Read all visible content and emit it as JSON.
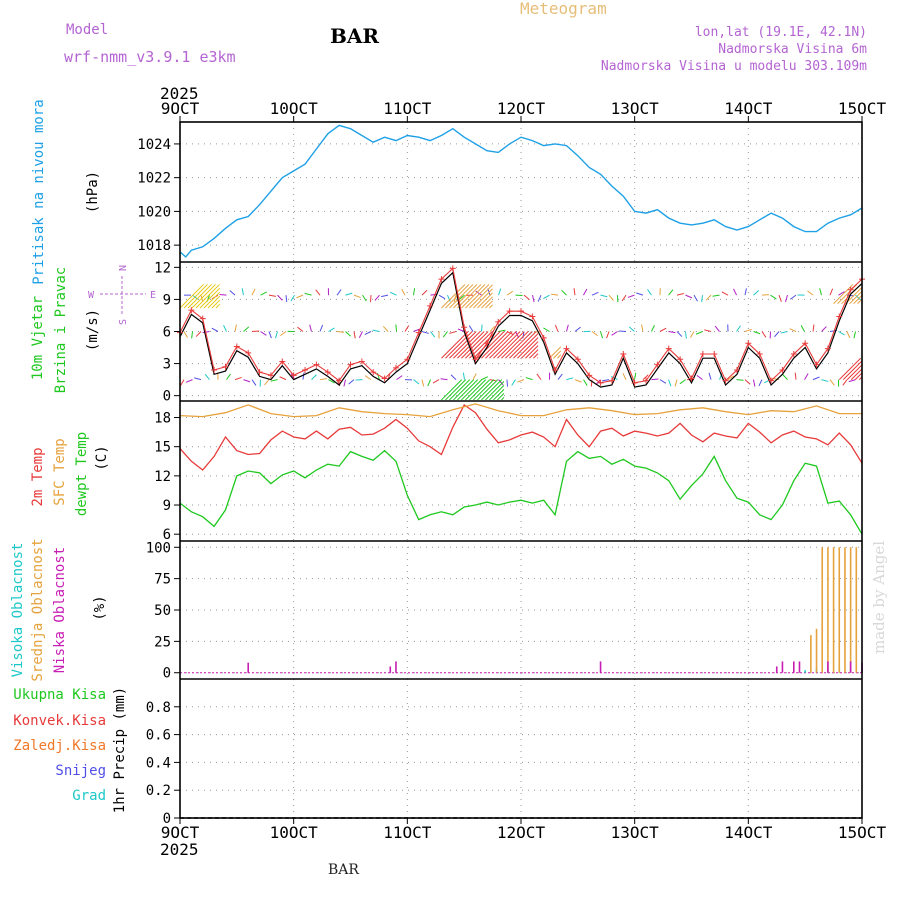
{
  "header": {
    "model_label": "Model",
    "model_name": "wrf-nmm_v3.9.1 e3km",
    "station": "BAR",
    "product": "Meteogram",
    "coords": "lon,lat (19.1E, 42.1N)",
    "elevation": "Nadmorska Visina 6m",
    "model_elevation": "Nadmorska Visina u modelu 303.109m"
  },
  "footer": {
    "station": "BAR",
    "watermark": "made by Angel"
  },
  "colors": {
    "pressure": "#1ea0e6",
    "temp2m": "#e83a3a",
    "sfc": "#e6a23c",
    "dewpt": "#1ec81e",
    "high_cloud": "#1ec8c8",
    "mid_cloud": "#e6a23c",
    "low_cloud": "#c81eb4",
    "model_text": "#b464d2",
    "meteogram_text": "#e6be78"
  },
  "chart_data": [
    {
      "type": "line",
      "panel": "pressure",
      "title": "Pritisak na nivou mora",
      "ylabel": "(hPa)",
      "ylim": [
        1017,
        1025.3
      ],
      "yticks": [
        1018,
        1020,
        1022,
        1024
      ],
      "x_unit": "day of October 2025",
      "x_ticks": [
        "9OCT",
        "10OCT",
        "11OCT",
        "12OCT",
        "13OCT",
        "14OCT",
        "15OCT"
      ],
      "year": "2025",
      "series": [
        {
          "name": "Pritisak na nivou mora",
          "x": [
            9.0,
            9.05,
            9.1,
            9.2,
            9.3,
            9.4,
            9.5,
            9.6,
            9.7,
            9.8,
            9.9,
            10.0,
            10.1,
            10.2,
            10.3,
            10.4,
            10.5,
            10.6,
            10.7,
            10.8,
            10.9,
            11.0,
            11.1,
            11.2,
            11.3,
            11.4,
            11.5,
            11.6,
            11.7,
            11.8,
            11.9,
            12.0,
            12.1,
            12.2,
            12.3,
            12.4,
            12.5,
            12.6,
            12.7,
            12.8,
            12.9,
            13.0,
            13.1,
            13.2,
            13.3,
            13.4,
            13.5,
            13.6,
            13.7,
            13.8,
            13.9,
            14.0,
            14.1,
            14.2,
            14.3,
            14.4,
            14.5,
            14.6,
            14.7,
            14.8,
            14.9,
            15.0
          ],
          "values": [
            1017.6,
            1017.3,
            1017.7,
            1017.9,
            1018.4,
            1019.0,
            1019.5,
            1019.7,
            1020.4,
            1021.2,
            1022.0,
            1022.4,
            1022.8,
            1023.7,
            1024.6,
            1025.1,
            1024.9,
            1024.5,
            1024.1,
            1024.4,
            1024.2,
            1024.5,
            1024.4,
            1024.2,
            1024.5,
            1024.9,
            1024.4,
            1024.0,
            1023.6,
            1023.5,
            1024.0,
            1024.4,
            1024.2,
            1023.9,
            1024.0,
            1023.9,
            1023.3,
            1022.6,
            1022.2,
            1021.5,
            1020.9,
            1020.0,
            1019.9,
            1020.1,
            1019.6,
            1019.3,
            1019.2,
            1019.3,
            1019.5,
            1019.1,
            1018.9,
            1019.1,
            1019.5,
            1019.9,
            1019.6,
            1019.1,
            1018.8,
            1018.8,
            1019.3,
            1019.6,
            1019.8,
            1020.2
          ]
        }
      ]
    },
    {
      "type": "line",
      "panel": "wind",
      "title": "10m Vjetar Brzina i Pravac",
      "ylabel": "(m/s)",
      "ylim": [
        -0.5,
        12.5
      ],
      "yticks": [
        0,
        3,
        6,
        9,
        12
      ],
      "direction_legend": {
        "north": "N",
        "south": "S",
        "west": "W",
        "east": "E"
      },
      "series": [
        {
          "name": "brzina",
          "x": [
            9.0,
            9.1,
            9.2,
            9.3,
            9.4,
            9.5,
            9.6,
            9.7,
            9.8,
            9.9,
            10.0,
            10.1,
            10.2,
            10.3,
            10.4,
            10.5,
            10.6,
            10.7,
            10.8,
            10.9,
            11.0,
            11.1,
            11.2,
            11.3,
            11.4,
            11.5,
            11.6,
            11.7,
            11.8,
            11.9,
            12.0,
            12.1,
            12.2,
            12.3,
            12.4,
            12.5,
            12.6,
            12.7,
            12.8,
            12.9,
            13.0,
            13.1,
            13.2,
            13.3,
            13.4,
            13.5,
            13.6,
            13.7,
            13.8,
            13.9,
            14.0,
            14.1,
            14.2,
            14.3,
            14.4,
            14.5,
            14.6,
            14.7,
            14.8,
            14.9,
            15.0
          ],
          "values": [
            5.5,
            7.6,
            6.8,
            2.0,
            2.3,
            4.2,
            3.6,
            1.8,
            1.5,
            2.8,
            1.5,
            2.0,
            2.5,
            1.8,
            1.0,
            2.5,
            2.8,
            1.8,
            1.2,
            2.2,
            3.0,
            5.5,
            8.0,
            10.5,
            11.5,
            6.0,
            3.0,
            4.5,
            6.5,
            7.5,
            7.5,
            7.0,
            5.0,
            2.0,
            4.0,
            3.0,
            1.5,
            0.8,
            1.0,
            3.5,
            0.8,
            1.0,
            2.5,
            4.0,
            3.0,
            1.2,
            3.5,
            3.5,
            1.0,
            2.0,
            4.5,
            3.5,
            1.0,
            2.0,
            3.5,
            4.5,
            2.5,
            4.0,
            7.0,
            9.5,
            10.5
          ]
        }
      ]
    },
    {
      "type": "line",
      "panel": "temperature",
      "ylabel": "(C)",
      "ylim": [
        5.3,
        19.7
      ],
      "yticks": [
        6,
        9,
        12,
        15,
        18
      ],
      "series": [
        {
          "name": "2m Temp",
          "x": [
            9.0,
            9.1,
            9.2,
            9.3,
            9.4,
            9.5,
            9.6,
            9.7,
            9.8,
            9.9,
            10.0,
            10.1,
            10.2,
            10.3,
            10.4,
            10.5,
            10.6,
            10.7,
            10.8,
            10.9,
            11.0,
            11.1,
            11.2,
            11.3,
            11.4,
            11.5,
            11.6,
            11.7,
            11.8,
            11.9,
            12.0,
            12.1,
            12.2,
            12.3,
            12.4,
            12.5,
            12.6,
            12.7,
            12.8,
            12.9,
            13.0,
            13.1,
            13.2,
            13.3,
            13.4,
            13.5,
            13.6,
            13.7,
            13.8,
            13.9,
            14.0,
            14.1,
            14.2,
            14.3,
            14.4,
            14.5,
            14.6,
            14.7,
            14.8,
            14.9,
            15.0
          ],
          "values": [
            14.8,
            13.5,
            12.6,
            14.0,
            16.0,
            14.6,
            14.2,
            14.3,
            15.7,
            16.6,
            16.0,
            15.8,
            16.6,
            15.8,
            16.8,
            17.0,
            16.2,
            16.3,
            16.9,
            17.8,
            16.9,
            15.6,
            15.0,
            14.2,
            17.0,
            19.3,
            18.5,
            16.8,
            15.4,
            15.7,
            16.2,
            16.5,
            16.0,
            15.0,
            17.8,
            16.2,
            15.0,
            16.6,
            16.9,
            16.1,
            16.6,
            16.4,
            16.1,
            16.4,
            17.4,
            16.2,
            15.5,
            16.4,
            16.1,
            15.9,
            17.4,
            16.5,
            15.4,
            16.2,
            16.6,
            16.0,
            15.8,
            15.2,
            16.4,
            15.2,
            13.3
          ]
        },
        {
          "name": "SFC Temp",
          "x": [
            9.0,
            9.2,
            9.4,
            9.6,
            9.8,
            10.0,
            10.2,
            10.4,
            10.6,
            10.8,
            11.0,
            11.2,
            11.4,
            11.6,
            11.8,
            12.0,
            12.2,
            12.4,
            12.6,
            12.8,
            13.0,
            13.2,
            13.4,
            13.6,
            13.8,
            14.0,
            14.2,
            14.4,
            14.6,
            14.8,
            15.0
          ],
          "values": [
            18.2,
            18.1,
            18.5,
            19.3,
            18.4,
            18.1,
            18.2,
            19.0,
            18.6,
            18.4,
            18.3,
            18.1,
            18.8,
            19.4,
            18.7,
            18.2,
            18.2,
            18.8,
            19.0,
            18.7,
            18.3,
            18.4,
            18.8,
            19.0,
            18.6,
            18.3,
            18.7,
            18.6,
            19.2,
            18.4,
            18.4
          ]
        },
        {
          "name": "dewpt Temp",
          "x": [
            9.0,
            9.1,
            9.2,
            9.3,
            9.4,
            9.5,
            9.6,
            9.7,
            9.8,
            9.9,
            10.0,
            10.1,
            10.2,
            10.3,
            10.4,
            10.5,
            10.6,
            10.7,
            10.8,
            10.9,
            11.0,
            11.1,
            11.2,
            11.3,
            11.4,
            11.5,
            11.6,
            11.7,
            11.8,
            11.9,
            12.0,
            12.1,
            12.2,
            12.3,
            12.4,
            12.5,
            12.6,
            12.7,
            12.8,
            12.9,
            13.0,
            13.1,
            13.2,
            13.3,
            13.4,
            13.5,
            13.6,
            13.7,
            13.8,
            13.9,
            14.0,
            14.1,
            14.2,
            14.3,
            14.4,
            14.5,
            14.6,
            14.7,
            14.8,
            14.9,
            15.0
          ],
          "values": [
            9.2,
            8.3,
            7.8,
            6.8,
            8.5,
            12.0,
            12.5,
            12.3,
            11.2,
            12.1,
            12.5,
            11.8,
            12.6,
            13.2,
            13.0,
            14.5,
            14.0,
            13.6,
            14.6,
            13.5,
            10.0,
            7.5,
            8.0,
            8.3,
            8.0,
            8.8,
            9.0,
            9.3,
            9.0,
            9.3,
            9.5,
            9.2,
            9.5,
            8.0,
            13.5,
            14.5,
            13.8,
            14.0,
            13.2,
            13.7,
            13.0,
            12.8,
            12.3,
            11.5,
            9.6,
            11.0,
            12.2,
            14.0,
            11.5,
            9.7,
            9.3,
            8.0,
            7.5,
            9.0,
            11.5,
            13.3,
            13.0,
            9.2,
            9.4,
            8.0,
            6.0
          ]
        }
      ]
    },
    {
      "type": "bar",
      "panel": "clouds",
      "ylabel": "(%)",
      "ylim": [
        -5,
        105
      ],
      "yticks": [
        0,
        25,
        50,
        75,
        100
      ],
      "series": [
        {
          "name": "Visoka Oblacnost",
          "x": [
            14.5,
            14.6,
            14.7,
            14.8,
            14.9,
            15.0
          ],
          "values": [
            2,
            4,
            3,
            5,
            3,
            2
          ]
        },
        {
          "name": "Srednja Oblacnost",
          "x": [
            14.55,
            14.6,
            14.65,
            14.7,
            14.75,
            14.8,
            14.85,
            14.9,
            14.95
          ],
          "values": [
            30,
            35,
            100,
            100,
            100,
            100,
            100,
            100,
            100
          ]
        },
        {
          "name": "Niska Oblacnost",
          "x": [
            9.6,
            10.85,
            10.9,
            12.7,
            14.25,
            14.3,
            14.4,
            14.45,
            14.7,
            14.9,
            15.0
          ],
          "values": [
            8,
            5,
            9,
            9,
            5,
            9,
            9,
            9,
            9,
            9,
            8
          ]
        }
      ]
    },
    {
      "type": "bar",
      "panel": "precipitation",
      "ylabel": "1hr Precip (mm)",
      "ylim": [
        0,
        1
      ],
      "yticks": [
        0,
        0.2,
        0.4,
        0.6,
        0.8
      ],
      "series": [
        {
          "name": "Ukupna Kisa",
          "values": []
        },
        {
          "name": "Konvek.Kisa",
          "values": []
        },
        {
          "name": "Zaledj.Kisa",
          "values": []
        },
        {
          "name": "Snijeg",
          "values": []
        },
        {
          "name": "Grad",
          "values": []
        }
      ]
    }
  ]
}
